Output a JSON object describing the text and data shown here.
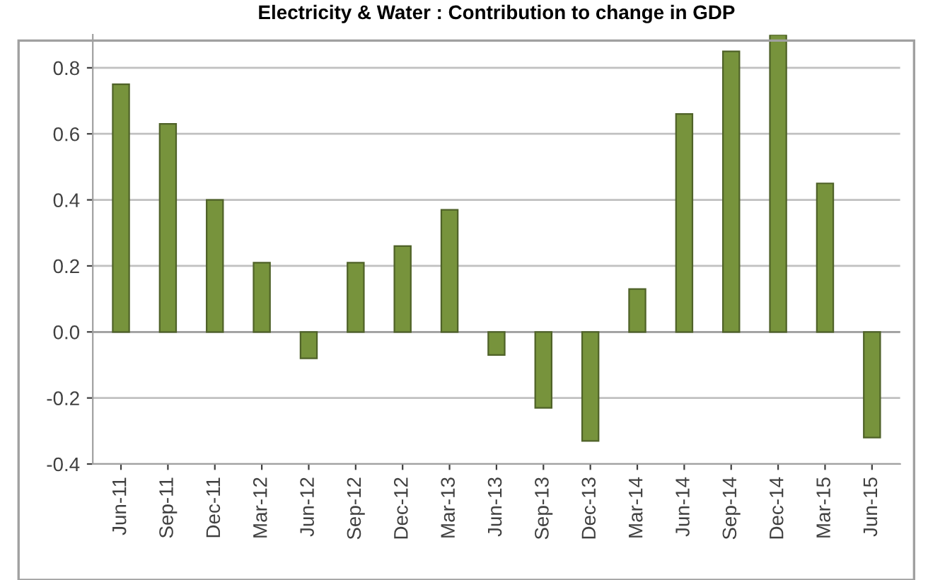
{
  "chart_data": {
    "type": "bar",
    "title": "Electricity & Water : Contribution to change in GDP",
    "categories": [
      "Jun-11",
      "Sep-11",
      "Dec-11",
      "Mar-12",
      "Jun-12",
      "Sep-12",
      "Dec-12",
      "Mar-13",
      "Jun-13",
      "Sep-13",
      "Dec-13",
      "Mar-14",
      "Jun-14",
      "Sep-14",
      "Dec-14",
      "Mar-15",
      "Jun-15"
    ],
    "values": [
      0.75,
      0.63,
      0.4,
      0.21,
      -0.08,
      0.21,
      0.26,
      0.37,
      -0.07,
      -0.23,
      -0.33,
      0.13,
      0.66,
      0.85,
      0.9,
      0.45,
      -0.32
    ],
    "color": "#77933c",
    "ylim": [
      -0.4,
      0.9
    ],
    "yticks": [
      {
        "value": -0.4,
        "label": "-0.4"
      },
      {
        "value": -0.2,
        "label": "-0.2"
      },
      {
        "value": 0,
        "label": "0.0"
      },
      {
        "value": 0.2,
        "label": "0.2"
      },
      {
        "value": 0.4,
        "label": "0.4"
      },
      {
        "value": 0.6,
        "label": "0.6"
      },
      {
        "value": 0.8,
        "label": "0.8"
      }
    ],
    "grid": "y"
  }
}
